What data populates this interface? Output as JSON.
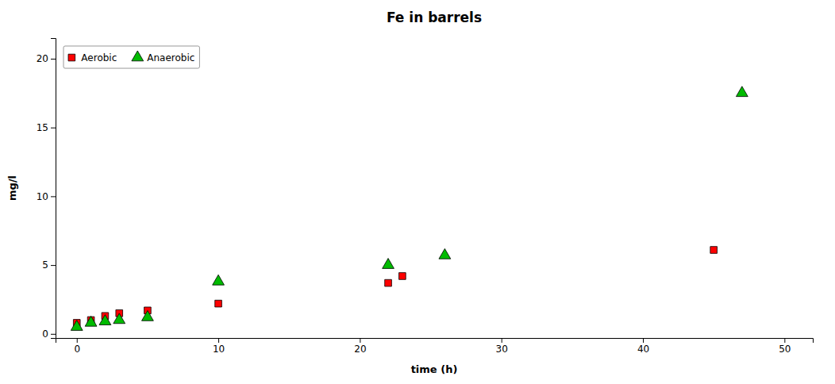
{
  "chart_data": {
    "type": "scatter",
    "title": "Fe in barrels",
    "x_label": "time (h)",
    "y_label": "mg/l",
    "xlim": [
      -1.5,
      52
    ],
    "ylim": [
      -0.3,
      21.5
    ],
    "xticks": [
      0,
      10,
      20,
      30,
      40,
      50
    ],
    "yticks": [
      0,
      5,
      10,
      15,
      20
    ],
    "grid": false,
    "legend": "upper left",
    "series": [
      {
        "name": "Aerobic",
        "color": "#ff0000",
        "marker": "square",
        "x": [
          0,
          1,
          2,
          3,
          5,
          10,
          22,
          23,
          45
        ],
        "values": [
          0.8,
          1.0,
          1.3,
          1.5,
          1.7,
          2.2,
          3.7,
          4.2,
          6.1
        ]
      },
      {
        "name": "Anaerobic",
        "color": "#00bb00",
        "marker": "triangle",
        "x": [
          0,
          1,
          2,
          3,
          5,
          10,
          22,
          26,
          47
        ],
        "values": [
          0.5,
          0.8,
          0.9,
          1.0,
          1.2,
          3.8,
          5.0,
          5.7,
          17.5
        ]
      }
    ]
  }
}
